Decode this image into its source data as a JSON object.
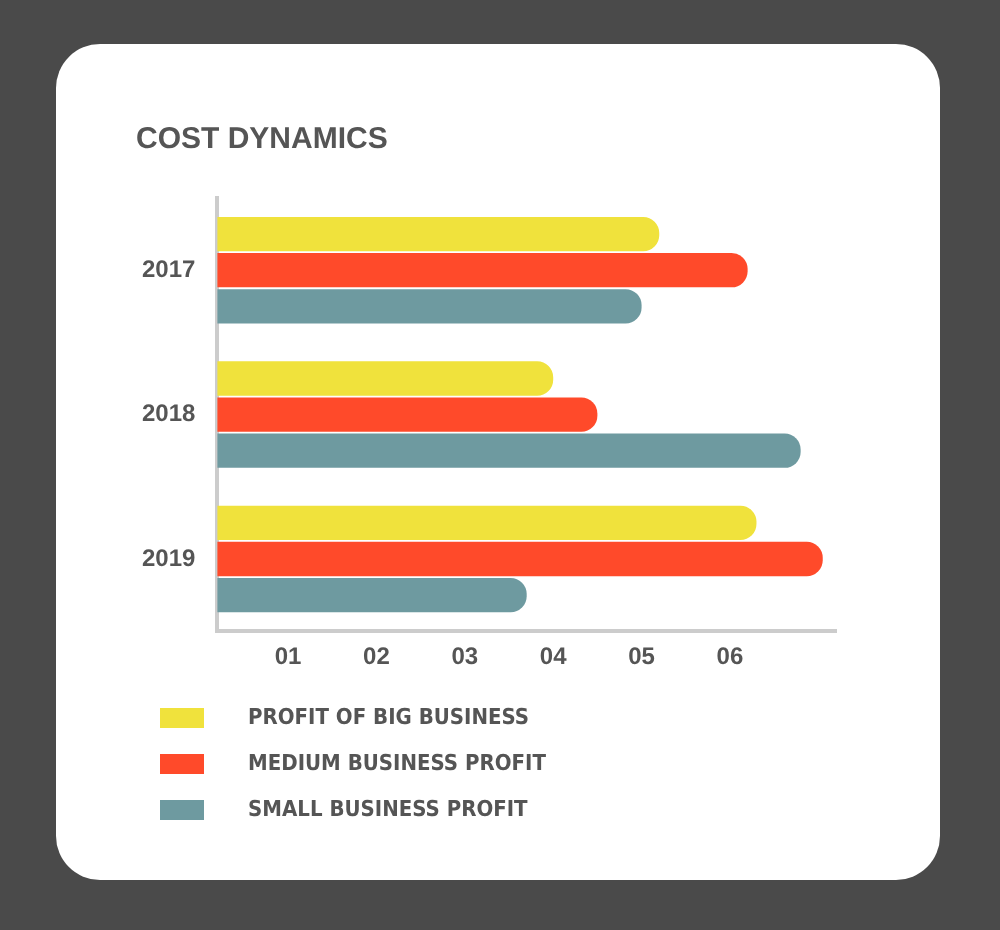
{
  "chart_data": {
    "type": "bar",
    "orientation": "horizontal",
    "title": "COST DYNAMICS",
    "categories": [
      "2017",
      "2018",
      "2019"
    ],
    "series": [
      {
        "name": "PROFIT OF BIG BUSINESS",
        "color": "#f0e23c",
        "values": [
          5.2,
          4.0,
          6.3
        ]
      },
      {
        "name": "MEDIUM BUSINESS PROFIT",
        "color": "#ff4a2a",
        "values": [
          6.2,
          4.5,
          7.05
        ]
      },
      {
        "name": "SMALL BUSINESS PROFIT",
        "color": "#6e9aa0",
        "values": [
          5.0,
          6.8,
          3.7
        ]
      }
    ],
    "xlim": [
      0.2,
      7.2
    ],
    "xticks": [
      {
        "value": 1,
        "label": "01"
      },
      {
        "value": 2,
        "label": "02"
      },
      {
        "value": 3,
        "label": "03"
      },
      {
        "value": 4,
        "label": "04"
      },
      {
        "value": 5,
        "label": "05"
      },
      {
        "value": 6,
        "label": "06"
      }
    ],
    "grid": false,
    "legend": "bottom"
  }
}
